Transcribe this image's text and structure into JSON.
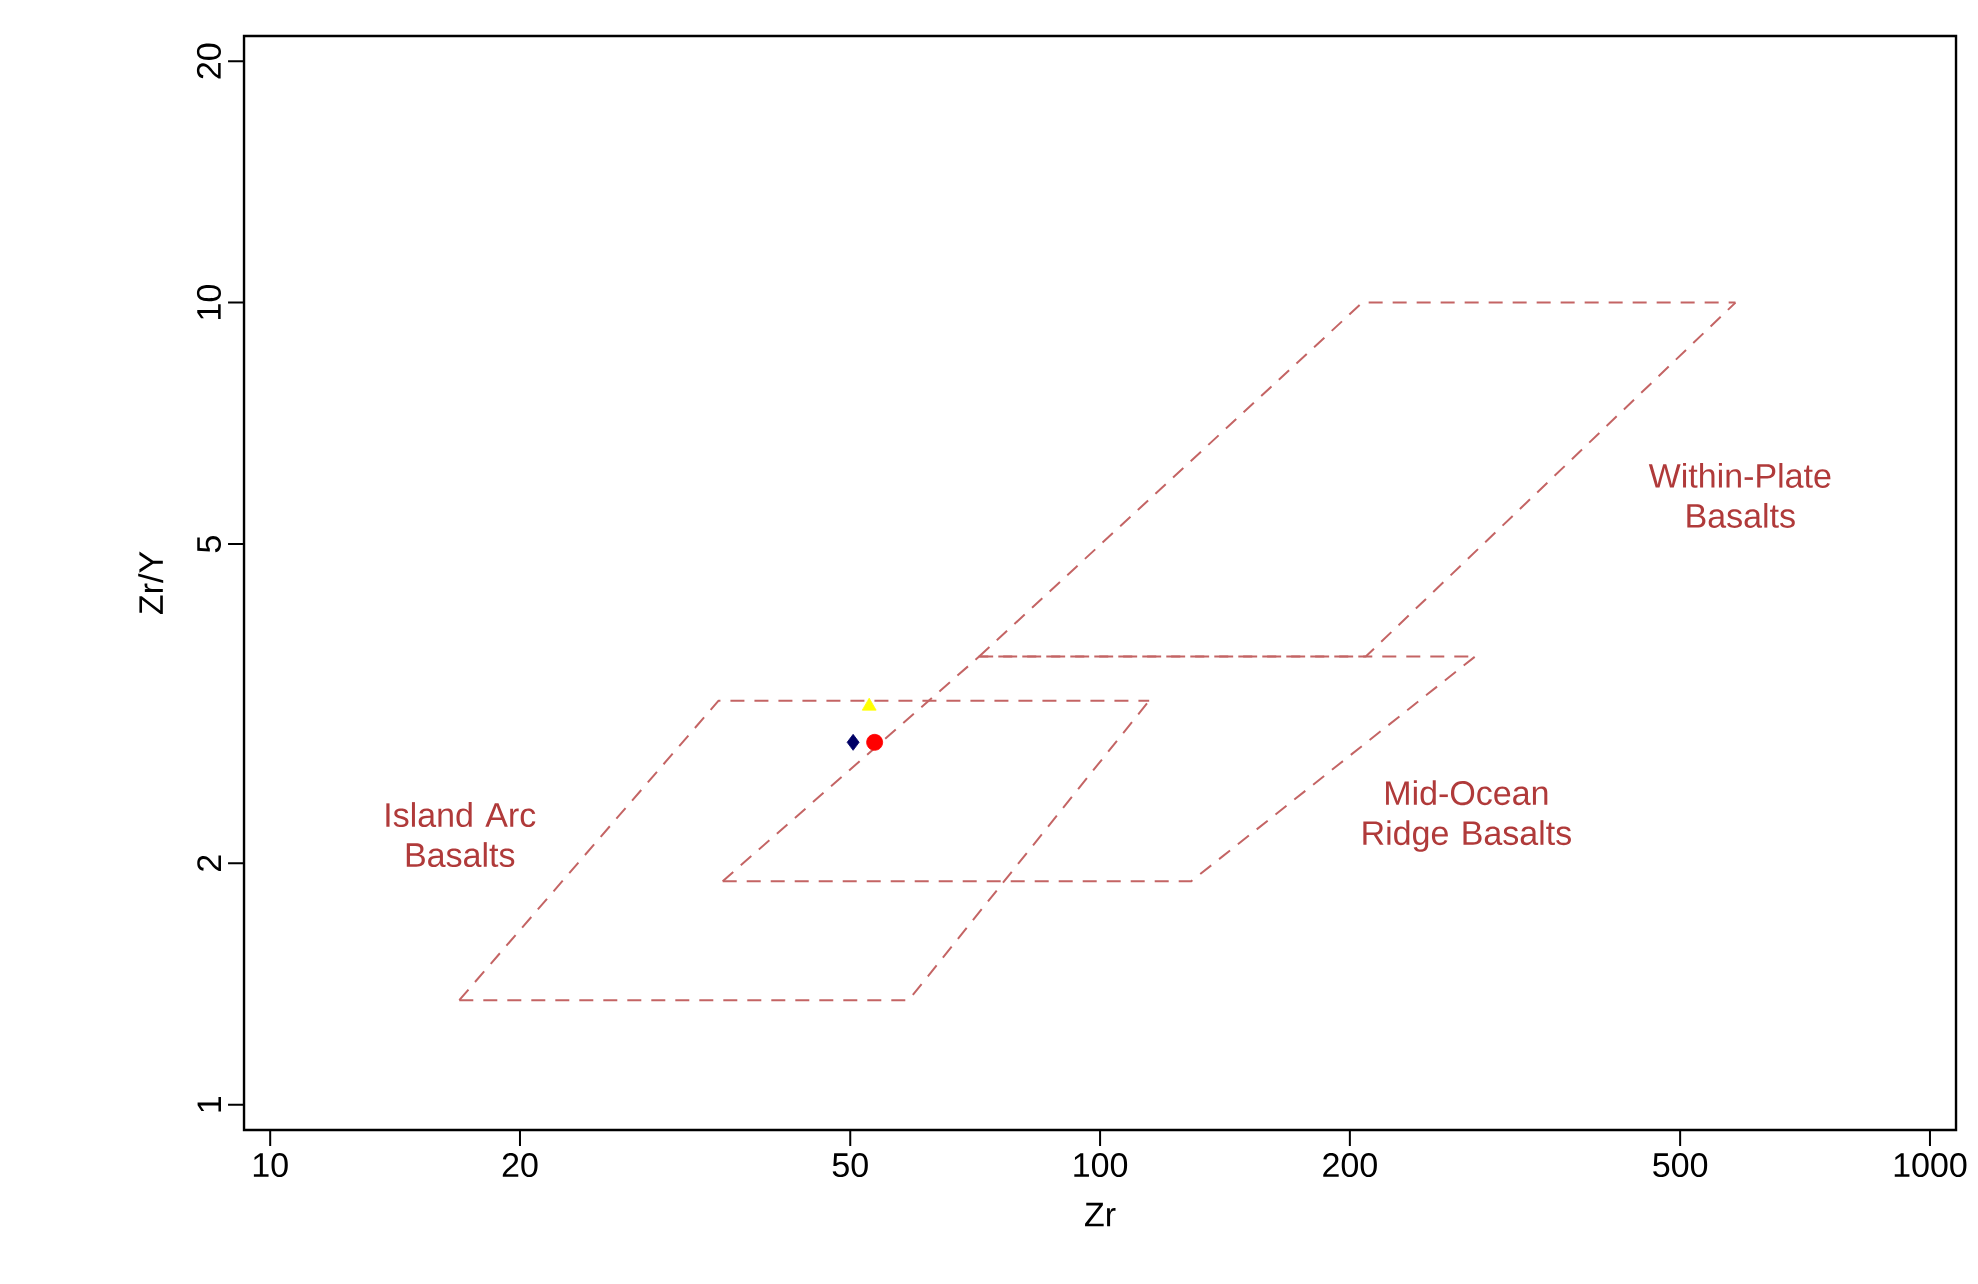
{
  "chart_data": {
    "type": "scatter",
    "xlabel": "Zr",
    "ylabel": "Zr/Y",
    "log": "xy",
    "grid": false,
    "xlim": [
      9.3,
      1075
    ],
    "ylim": [
      0.93,
      21.5
    ],
    "xticks": [
      10,
      20,
      50,
      100,
      200,
      500,
      1000
    ],
    "yticks": [
      1,
      2,
      5,
      10,
      20
    ],
    "series": [
      {
        "type": "line",
        "line_style": "dashed",
        "marker": "none",
        "color": "#c46464",
        "x": [
          16.9,
          58.8,
          114.6
        ],
        "values": [
          1.35,
          1.35,
          3.19
        ]
      },
      {
        "type": "line",
        "line_style": "dashed",
        "marker": "none",
        "color": "#c46464",
        "x": [
          16.9,
          34.7,
          114.6
        ],
        "values": [
          1.35,
          3.19,
          3.19
        ]
      },
      {
        "type": "line",
        "line_style": "dashed",
        "marker": "none",
        "color": "#c46464",
        "x": [
          35.1,
          128.8,
          283
        ],
        "values": [
          1.9,
          1.9,
          3.62
        ]
      },
      {
        "type": "line",
        "line_style": "dashed",
        "marker": "none",
        "color": "#c46464",
        "x": [
          35.1,
          71.5,
          283
        ],
        "values": [
          1.9,
          3.62,
          3.62
        ]
      },
      {
        "type": "line",
        "line_style": "dashed",
        "marker": "none",
        "color": "#c46464",
        "x": [
          71.5,
          209,
          583
        ],
        "values": [
          3.62,
          3.62,
          10
        ]
      },
      {
        "type": "line",
        "line_style": "dashed",
        "marker": "none",
        "color": "#c46464",
        "x": [
          71.5,
          207,
          583
        ],
        "values": [
          3.62,
          10,
          10
        ]
      },
      {
        "type": "scatter",
        "marker": "diamond",
        "color": "#000066",
        "x": [
          50.4
        ],
        "values": [
          2.83
        ]
      },
      {
        "type": "scatter",
        "marker": "circle",
        "color": "#ff0000",
        "x": [
          53.5
        ],
        "values": [
          2.83
        ]
      },
      {
        "type": "scatter",
        "marker": "triangle",
        "color": "#ffff00",
        "x": [
          52.7
        ],
        "values": [
          3.14
        ]
      }
    ],
    "annotations": [
      "Island Arc Basalts",
      "Within-Plate Basalts",
      "Mid-Ocean Ridge Basalts"
    ]
  }
}
